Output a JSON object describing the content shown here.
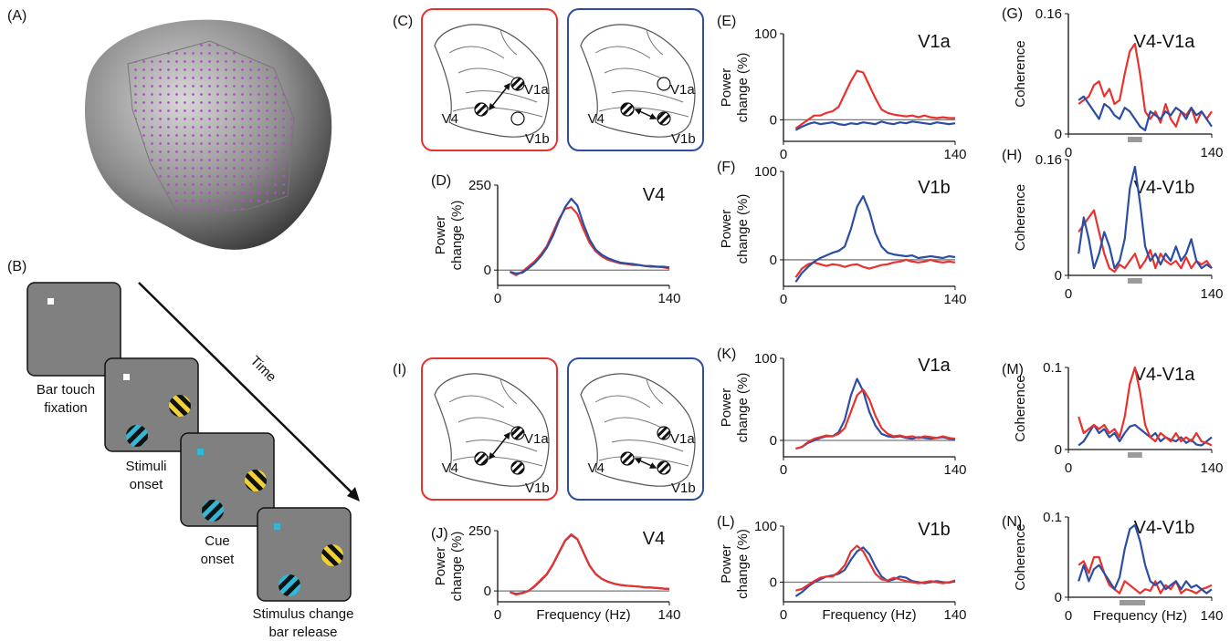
{
  "panels": {
    "A": "(A)",
    "B": "(B)"
  },
  "task": {
    "time": "Time",
    "steps": [
      [
        "Bar touch",
        "fixation"
      ],
      [
        "Stimuli",
        "onset"
      ],
      [
        "Cue",
        "onset"
      ],
      [
        "Stimulus change",
        "bar release"
      ]
    ]
  },
  "maps": [
    {
      "label": "(C)",
      "boxes": [
        {
          "color": "#e8322e",
          "labels": [
            "V4",
            "V1a",
            "V1b"
          ]
        },
        {
          "color": "#2b4ea2",
          "labels": [
            "V4",
            "V1a",
            "V1b"
          ]
        }
      ]
    },
    {
      "label": "(I)",
      "boxes": [
        {
          "color": "#e8322e",
          "labels": [
            "V4",
            "V1a",
            "V1b"
          ]
        },
        {
          "color": "#2b4ea2",
          "labels": [
            "V4",
            "V1a",
            "V1b"
          ]
        }
      ]
    }
  ],
  "chart_data": [
    {
      "type": "line",
      "label": "(D)",
      "title": "V4",
      "ylabel": [
        "Power",
        "change (%)"
      ],
      "xlim": [
        0,
        140
      ],
      "xticks": [
        0,
        140
      ],
      "ylim": [
        -45,
        250
      ],
      "yticks": [
        0,
        250
      ],
      "zero_line": true,
      "x": [
        10,
        15,
        20,
        25,
        30,
        35,
        40,
        45,
        50,
        55,
        60,
        65,
        70,
        75,
        80,
        85,
        90,
        95,
        100,
        105,
        110,
        115,
        120,
        125,
        130,
        135,
        140
      ],
      "series": [
        {
          "color": "#e8322e",
          "values": [
            -5,
            -15,
            -5,
            10,
            25,
            45,
            70,
            110,
            150,
            180,
            185,
            165,
            120,
            80,
            55,
            40,
            30,
            25,
            20,
            18,
            15,
            15,
            12,
            10,
            10,
            8,
            5
          ]
        },
        {
          "color": "#2b4ea2",
          "values": [
            -5,
            -10,
            -8,
            5,
            20,
            40,
            65,
            100,
            145,
            185,
            210,
            190,
            135,
            90,
            60,
            45,
            35,
            28,
            22,
            20,
            18,
            15,
            12,
            12,
            10,
            10,
            8
          ]
        }
      ]
    },
    {
      "type": "line",
      "label": "(E)",
      "title": "V1a",
      "ylabel": [
        "Power",
        "change (%)"
      ],
      "xlim": [
        0,
        140
      ],
      "xticks": [
        0,
        140
      ],
      "ylim": [
        -25,
        100
      ],
      "yticks": [
        0,
        100
      ],
      "zero_line": true,
      "x": [
        10,
        15,
        20,
        25,
        30,
        35,
        40,
        45,
        50,
        55,
        60,
        65,
        70,
        75,
        80,
        85,
        90,
        95,
        100,
        105,
        110,
        115,
        120,
        125,
        130,
        135,
        140
      ],
      "series": [
        {
          "color": "#e8322e",
          "values": [
            -10,
            -5,
            0,
            5,
            5,
            8,
            10,
            15,
            30,
            45,
            57,
            55,
            40,
            25,
            12,
            8,
            6,
            5,
            4,
            5,
            3,
            5,
            3,
            2,
            3,
            2,
            2
          ]
        },
        {
          "color": "#2b4ea2",
          "values": [
            -12,
            -8,
            -5,
            -3,
            -5,
            -4,
            -3,
            -5,
            -6,
            -4,
            -5,
            -3,
            -4,
            -5,
            -2,
            -4,
            -5,
            -3,
            -4,
            -2,
            -3,
            -4,
            -5,
            -3,
            -4,
            -5,
            -4
          ]
        }
      ]
    },
    {
      "type": "line",
      "label": "(F)",
      "title": "V1b",
      "ylabel": [
        "Power",
        "change (%)"
      ],
      "xlim": [
        0,
        140
      ],
      "xticks": [
        0,
        140
      ],
      "ylim": [
        -30,
        100
      ],
      "yticks": [
        0,
        100
      ],
      "zero_line": true,
      "x": [
        10,
        15,
        20,
        25,
        30,
        35,
        40,
        45,
        50,
        55,
        60,
        65,
        70,
        75,
        80,
        85,
        90,
        95,
        100,
        105,
        110,
        115,
        120,
        125,
        130,
        135,
        140
      ],
      "series": [
        {
          "color": "#e8322e",
          "values": [
            -20,
            -10,
            -5,
            -3,
            -5,
            -7,
            -5,
            -6,
            -8,
            -6,
            -5,
            -8,
            -10,
            -8,
            -6,
            -5,
            -3,
            -2,
            0,
            -2,
            -3,
            -2,
            0,
            -2,
            -3,
            -2,
            -3
          ]
        },
        {
          "color": "#2b4ea2",
          "values": [
            -25,
            -15,
            -8,
            -2,
            2,
            5,
            8,
            10,
            15,
            35,
            60,
            72,
            55,
            30,
            15,
            8,
            6,
            5,
            4,
            5,
            2,
            3,
            4,
            3,
            2,
            4,
            3
          ]
        }
      ]
    },
    {
      "type": "line",
      "label": "(G)",
      "title": "V4-V1a",
      "ylabel": [
        "Coherence"
      ],
      "xlim": [
        0,
        140
      ],
      "xticks": [
        0,
        140
      ],
      "ylim": [
        0,
        0.16
      ],
      "yticks": [
        0,
        0.16
      ],
      "band": [
        58,
        72
      ],
      "x": [
        10,
        15,
        20,
        25,
        30,
        35,
        40,
        45,
        50,
        55,
        60,
        65,
        70,
        75,
        80,
        85,
        90,
        95,
        100,
        105,
        110,
        115,
        120,
        125,
        130,
        135,
        140
      ],
      "series": [
        {
          "color": "#e8322e",
          "values": [
            0.04,
            0.045,
            0.05,
            0.065,
            0.07,
            0.05,
            0.06,
            0.04,
            0.045,
            0.08,
            0.11,
            0.12,
            0.08,
            0.03,
            0.02,
            0.03,
            0.015,
            0.04,
            0.02,
            0.01,
            0.03,
            0.025,
            0.035,
            0.015,
            0.03,
            0.02,
            0.03
          ]
        },
        {
          "color": "#2b4ea2",
          "values": [
            0.045,
            0.05,
            0.04,
            0.03,
            0.02,
            0.04,
            0.035,
            0.025,
            0.02,
            0.035,
            0.03,
            0.02,
            0.01,
            0.005,
            0.03,
            0.025,
            0.02,
            0.03,
            0.025,
            0.035,
            0.03,
            0.02,
            0.035,
            0.025,
            0.03,
            0.02,
            0.01
          ]
        }
      ]
    },
    {
      "type": "line",
      "label": "(H)",
      "title": "V4-V1b",
      "ylabel": [
        "Coherence"
      ],
      "xlim": [
        0,
        140
      ],
      "xticks": [
        0,
        140
      ],
      "ylim": [
        0,
        0.16
      ],
      "yticks": [
        0,
        0.16
      ],
      "band": [
        58,
        72
      ],
      "x": [
        10,
        15,
        20,
        25,
        30,
        35,
        40,
        45,
        50,
        55,
        60,
        65,
        70,
        75,
        80,
        85,
        90,
        95,
        100,
        105,
        110,
        115,
        120,
        125,
        130,
        135,
        140
      ],
      "series": [
        {
          "color": "#e8322e",
          "values": [
            0.06,
            0.07,
            0.08,
            0.09,
            0.06,
            0.03,
            0.01,
            0.005,
            0.015,
            0.01,
            0.02,
            0.03,
            0.01,
            0.02,
            0.035,
            0.01,
            0.03,
            0.02,
            0.015,
            0.02,
            0.01,
            0.025,
            0.01,
            0.02,
            0.015,
            0.02,
            0.01
          ]
        },
        {
          "color": "#2b4ea2",
          "values": [
            0.03,
            0.08,
            0.05,
            0.01,
            0.03,
            0.06,
            0.04,
            0.01,
            0.02,
            0.05,
            0.12,
            0.15,
            0.1,
            0.04,
            0.02,
            0.03,
            0.015,
            0.03,
            0.02,
            0.04,
            0.02,
            0.03,
            0.05,
            0.02,
            0.01,
            0.015,
            0.01
          ]
        }
      ]
    },
    {
      "type": "line",
      "label": "(J)",
      "title": "V4",
      "ylabel": [
        "Power",
        "change (%)"
      ],
      "xlabel": "Frequency (Hz)",
      "xlim": [
        0,
        140
      ],
      "xticks": [
        0,
        140
      ],
      "ylim": [
        -45,
        250
      ],
      "yticks": [
        0,
        250
      ],
      "zero_line": true,
      "x": [
        10,
        15,
        20,
        25,
        30,
        35,
        40,
        45,
        50,
        55,
        60,
        65,
        70,
        75,
        80,
        85,
        90,
        95,
        100,
        105,
        110,
        115,
        120,
        125,
        130,
        135,
        140
      ],
      "series": [
        {
          "color": "#2b4ea2",
          "values": [
            -5,
            -12,
            -8,
            0,
            18,
            42,
            68,
            108,
            158,
            208,
            232,
            214,
            158,
            104,
            70,
            50,
            38,
            30,
            25,
            22,
            20,
            18,
            15,
            14,
            12,
            10,
            8
          ]
        },
        {
          "color": "#e8322e",
          "values": [
            -5,
            -15,
            -10,
            0,
            20,
            45,
            70,
            110,
            160,
            210,
            235,
            215,
            160,
            105,
            70,
            50,
            38,
            30,
            25,
            22,
            20,
            18,
            15,
            14,
            12,
            10,
            8
          ]
        }
      ]
    },
    {
      "type": "line",
      "label": "(K)",
      "title": "V1a",
      "ylabel": [
        "Power",
        "change (%)"
      ],
      "xlim": [
        0,
        140
      ],
      "xticks": [
        0,
        140
      ],
      "ylim": [
        -20,
        100
      ],
      "yticks": [
        0,
        100
      ],
      "zero_line": true,
      "x": [
        10,
        15,
        20,
        25,
        30,
        35,
        40,
        45,
        50,
        55,
        60,
        65,
        70,
        75,
        80,
        85,
        90,
        95,
        100,
        105,
        110,
        115,
        120,
        125,
        130,
        135,
        140
      ],
      "series": [
        {
          "color": "#2b4ea2",
          "values": [
            -10,
            -8,
            -3,
            0,
            3,
            5,
            5,
            10,
            25,
            55,
            75,
            60,
            35,
            18,
            8,
            5,
            4,
            5,
            3,
            2,
            4,
            3,
            2,
            3,
            4,
            2,
            1
          ]
        },
        {
          "color": "#e8322e",
          "values": [
            -10,
            -8,
            -2,
            2,
            4,
            6,
            5,
            8,
            15,
            35,
            55,
            62,
            50,
            30,
            15,
            8,
            5,
            6,
            4,
            5,
            3,
            5,
            4,
            3,
            5,
            3,
            2
          ]
        }
      ]
    },
    {
      "type": "line",
      "label": "(L)",
      "title": "V1b",
      "ylabel": [
        "Power",
        "change (%)"
      ],
      "xlabel": "Frequency (Hz)",
      "xlim": [
        0,
        140
      ],
      "xticks": [
        0,
        140
      ],
      "ylim": [
        -35,
        100
      ],
      "yticks": [
        0,
        100
      ],
      "zero_line": true,
      "x": [
        10,
        15,
        20,
        25,
        30,
        35,
        40,
        45,
        50,
        55,
        60,
        65,
        70,
        75,
        80,
        85,
        90,
        95,
        100,
        105,
        110,
        115,
        120,
        125,
        130,
        135,
        140
      ],
      "series": [
        {
          "color": "#2b4ea2",
          "values": [
            -25,
            -18,
            -8,
            0,
            5,
            10,
            12,
            15,
            22,
            40,
            55,
            62,
            50,
            28,
            10,
            2,
            5,
            10,
            8,
            2,
            0,
            -2,
            0,
            2,
            0,
            -1,
            2
          ]
        },
        {
          "color": "#e8322e",
          "values": [
            -15,
            -12,
            -5,
            2,
            8,
            10,
            10,
            18,
            30,
            55,
            65,
            55,
            35,
            15,
            5,
            3,
            8,
            5,
            2,
            0,
            -2,
            0,
            2,
            0,
            -2,
            0,
            3
          ]
        }
      ]
    },
    {
      "type": "line",
      "label": "(M)",
      "title": "V4-V1a",
      "ylabel": [
        "Coherence"
      ],
      "xlim": [
        0,
        140
      ],
      "xticks": [
        0,
        140
      ],
      "ylim": [
        0,
        0.1
      ],
      "yticks": [
        0,
        0.1
      ],
      "band": [
        58,
        72
      ],
      "x": [
        10,
        15,
        20,
        25,
        30,
        35,
        40,
        45,
        50,
        55,
        60,
        65,
        70,
        75,
        80,
        85,
        90,
        95,
        100,
        105,
        110,
        115,
        120,
        125,
        130,
        135,
        140
      ],
      "series": [
        {
          "color": "#2b4ea2",
          "values": [
            0.005,
            0.01,
            0.02,
            0.03,
            0.02,
            0.025,
            0.015,
            0.02,
            0.01,
            0.02,
            0.028,
            0.03,
            0.025,
            0.02,
            0.015,
            0.02,
            0.01,
            0.015,
            0.012,
            0.01,
            0.015,
            0.008,
            0.012,
            0.006,
            0.005,
            0.01,
            0.015
          ]
        },
        {
          "color": "#e8322e",
          "values": [
            0.04,
            0.02,
            0.025,
            0.03,
            0.025,
            0.03,
            0.02,
            0.025,
            0.015,
            0.04,
            0.08,
            0.1,
            0.07,
            0.03,
            0.015,
            0.01,
            0.02,
            0.015,
            0.01,
            0.02,
            0.01,
            0.015,
            0.01,
            0.02,
            0.01,
            0.008,
            0.005
          ]
        }
      ]
    },
    {
      "type": "line",
      "label": "(N)",
      "title": "V4-V1b",
      "ylabel": [
        "Coherence"
      ],
      "xlabel": "Frequency (Hz)",
      "xlim": [
        0,
        140
      ],
      "xticks": [
        0,
        140
      ],
      "ylim": [
        0,
        0.1
      ],
      "yticks": [
        0,
        0.1
      ],
      "band": [
        50,
        75
      ],
      "x": [
        10,
        15,
        20,
        25,
        30,
        35,
        40,
        45,
        50,
        55,
        60,
        65,
        70,
        75,
        80,
        85,
        90,
        95,
        100,
        105,
        110,
        115,
        120,
        125,
        130,
        135,
        140
      ],
      "series": [
        {
          "color": "#e8322e",
          "values": [
            0.04,
            0.045,
            0.03,
            0.05,
            0.05,
            0.03,
            0.015,
            0.01,
            0.005,
            0.02,
            0.015,
            0.01,
            0.005,
            0.01,
            0.008,
            0.02,
            0.005,
            0.015,
            0.01,
            0.02,
            0.005,
            0.01,
            0.008,
            0.005,
            0.01,
            0.012,
            0.015
          ]
        },
        {
          "color": "#2b4ea2",
          "values": [
            0.02,
            0.04,
            0.02,
            0.035,
            0.04,
            0.03,
            0.02,
            0.01,
            0.025,
            0.06,
            0.085,
            0.09,
            0.07,
            0.04,
            0.02,
            0.015,
            0.02,
            0.01,
            0.015,
            0.02,
            0.01,
            0.02,
            0.012,
            0.015,
            0.01,
            0.005,
            0.01
          ]
        }
      ]
    }
  ]
}
